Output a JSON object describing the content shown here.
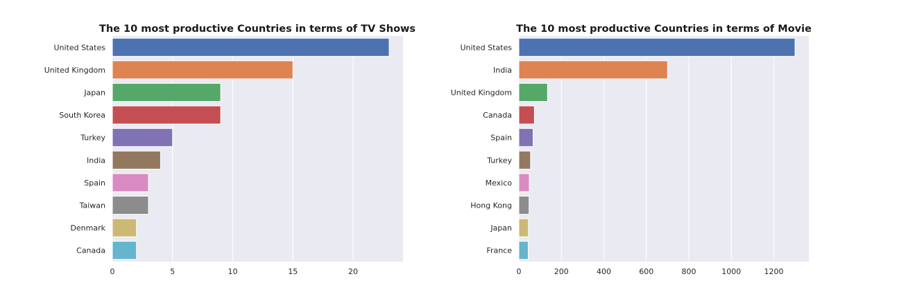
{
  "chart_data": [
    {
      "type": "bar",
      "orientation": "horizontal",
      "title": "The 10 most productive Countries in terms of TV Shows",
      "xlabel": "",
      "ylabel": "",
      "categories": [
        "United States",
        "United Kingdom",
        "Japan",
        "South Korea",
        "Turkey",
        "India",
        "Spain",
        "Taiwan",
        "Denmark",
        "Canada"
      ],
      "values": [
        23,
        15,
        9,
        9,
        5,
        4,
        3,
        3,
        2,
        2
      ],
      "xlim": [
        0,
        24.15
      ],
      "xticks": [
        0,
        5,
        10,
        15,
        20
      ],
      "colors": [
        "#4c72b0",
        "#dd8452",
        "#55a868",
        "#c44e52",
        "#8172b3",
        "#937860",
        "#da8bc3",
        "#8c8c8c",
        "#ccb974",
        "#64b5cd"
      ],
      "grid": true
    },
    {
      "type": "bar",
      "orientation": "horizontal",
      "title": "The 10 most productive Countries in terms of Movie",
      "xlabel": "",
      "ylabel": "",
      "categories": [
        "United States",
        "India",
        "United Kingdom",
        "Canada",
        "Spain",
        "Turkey",
        "Mexico",
        "Hong Kong",
        "Japan",
        "France"
      ],
      "values": [
        1300,
        700,
        135,
        73,
        67,
        55,
        49,
        48,
        45,
        44
      ],
      "xlim": [
        0,
        1365
      ],
      "xticks": [
        0,
        200,
        400,
        600,
        800,
        1000,
        1200
      ],
      "colors": [
        "#4c72b0",
        "#dd8452",
        "#55a868",
        "#c44e52",
        "#8172b3",
        "#937860",
        "#da8bc3",
        "#8c8c8c",
        "#ccb974",
        "#64b5cd"
      ],
      "grid": true
    }
  ]
}
